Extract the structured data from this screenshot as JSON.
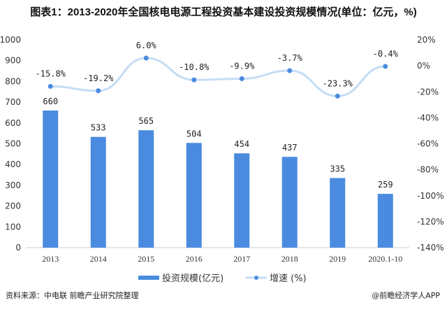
{
  "title": "图表1：2013-2020年全国核电电源工程投资基本建设投资规模情况(单位：亿元，%)",
  "chart_data": {
    "type": "bar+line",
    "categories": [
      "2013",
      "2014",
      "2015",
      "2016",
      "2017",
      "2018",
      "2019",
      "2020.1-10"
    ],
    "series": [
      {
        "name": "投资规模(亿元)",
        "type": "bar",
        "axis": "left",
        "color": "#4a8be0",
        "values": [
          660,
          533,
          565,
          504,
          454,
          437,
          335,
          259
        ],
        "labels": [
          "660",
          "533",
          "565",
          "504",
          "454",
          "437",
          "335",
          "259"
        ]
      },
      {
        "name": "增速 (%)",
        "type": "line",
        "axis": "right",
        "color": "#c6dcf5",
        "marker_color": "#4a8be0",
        "values": [
          -15.8,
          -19.2,
          6.0,
          -10.8,
          -9.9,
          -3.7,
          -23.3,
          -0.4
        ],
        "labels": [
          "-15.8%",
          "-19.2%",
          "6.0%",
          "-10.8%",
          "-9.9%",
          "-3.7%",
          "-23.3%",
          "-0.4%"
        ]
      }
    ],
    "left_axis": {
      "ylim": [
        0,
        1000
      ],
      "ticks": [
        "0",
        "100",
        "200",
        "300",
        "400",
        "500",
        "600",
        "700",
        "800",
        "900",
        "1000"
      ]
    },
    "right_axis": {
      "ylim": [
        -140,
        20
      ],
      "ticks": [
        "-140%",
        "-120%",
        "-100%",
        "-80%",
        "-60%",
        "-40%",
        "-20%",
        "0%",
        "20%"
      ]
    },
    "grid": false,
    "legend": "bottom",
    "legend_entries": [
      "投资规模(亿元)",
      "增速 (%)"
    ]
  },
  "footer": {
    "source": "资料来源：中电联 前瞻产业研究院整理",
    "credit": "@前瞻经济学人APP"
  }
}
